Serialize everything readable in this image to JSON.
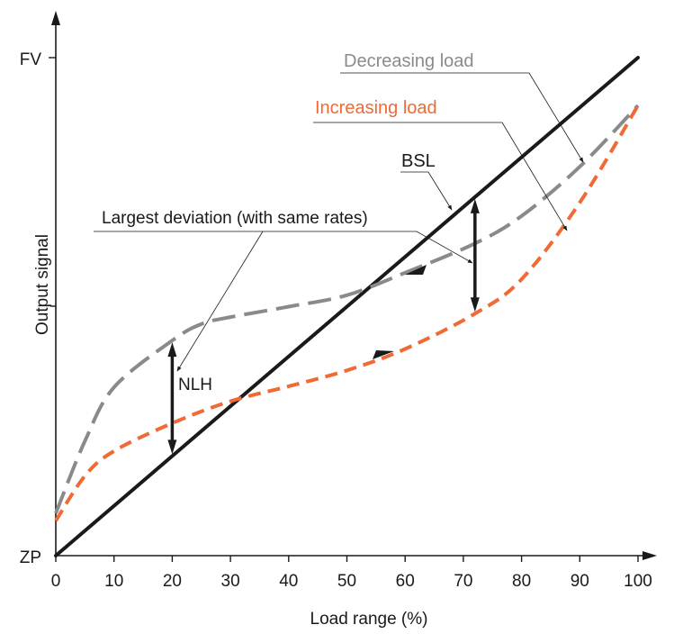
{
  "chart_data": {
    "type": "line",
    "title": "",
    "xlabel": "Load range (%)",
    "ylabel": "Output signal",
    "xlim": [
      0,
      100
    ],
    "ylim": [
      0,
      1
    ],
    "x_ticks": [
      0,
      10,
      20,
      30,
      40,
      50,
      60,
      70,
      80,
      90,
      100
    ],
    "y_tick_labels": {
      "zero": "ZP",
      "full": "FV"
    },
    "grid": false,
    "colors": {
      "bsl": "#1a1a1a",
      "decreasing": "#8a8a8a",
      "increasing": "#f06a35",
      "text": "#1a1a1a"
    },
    "series": [
      {
        "name": "BSL",
        "style": "solid",
        "x": [
          0,
          100
        ],
        "y": [
          0,
          1
        ]
      },
      {
        "name": "Decreasing load",
        "style": "dashed",
        "x": [
          0,
          5,
          10,
          20,
          25,
          30,
          40,
          50,
          60,
          72,
          80,
          90,
          100
        ],
        "y": [
          0.085,
          0.23,
          0.338,
          0.432,
          0.465,
          0.479,
          0.5,
          0.523,
          0.568,
          0.627,
          0.682,
          0.781,
          0.904
        ]
      },
      {
        "name": "Increasing load",
        "style": "dashed",
        "x": [
          0,
          5,
          10,
          20,
          30,
          40,
          50,
          60,
          72,
          80,
          90,
          100
        ],
        "y": [
          0.07,
          0.16,
          0.21,
          0.266,
          0.31,
          0.34,
          0.372,
          0.415,
          0.486,
          0.555,
          0.709,
          0.904
        ]
      }
    ],
    "annotations": {
      "decreasing": "Decreasing load",
      "increasing": "Increasing load",
      "bsl": "BSL",
      "largest_deviation": "Largest deviation (with same rates)",
      "nlh": "NLH"
    },
    "deviation_markers_x": [
      20,
      72
    ]
  }
}
